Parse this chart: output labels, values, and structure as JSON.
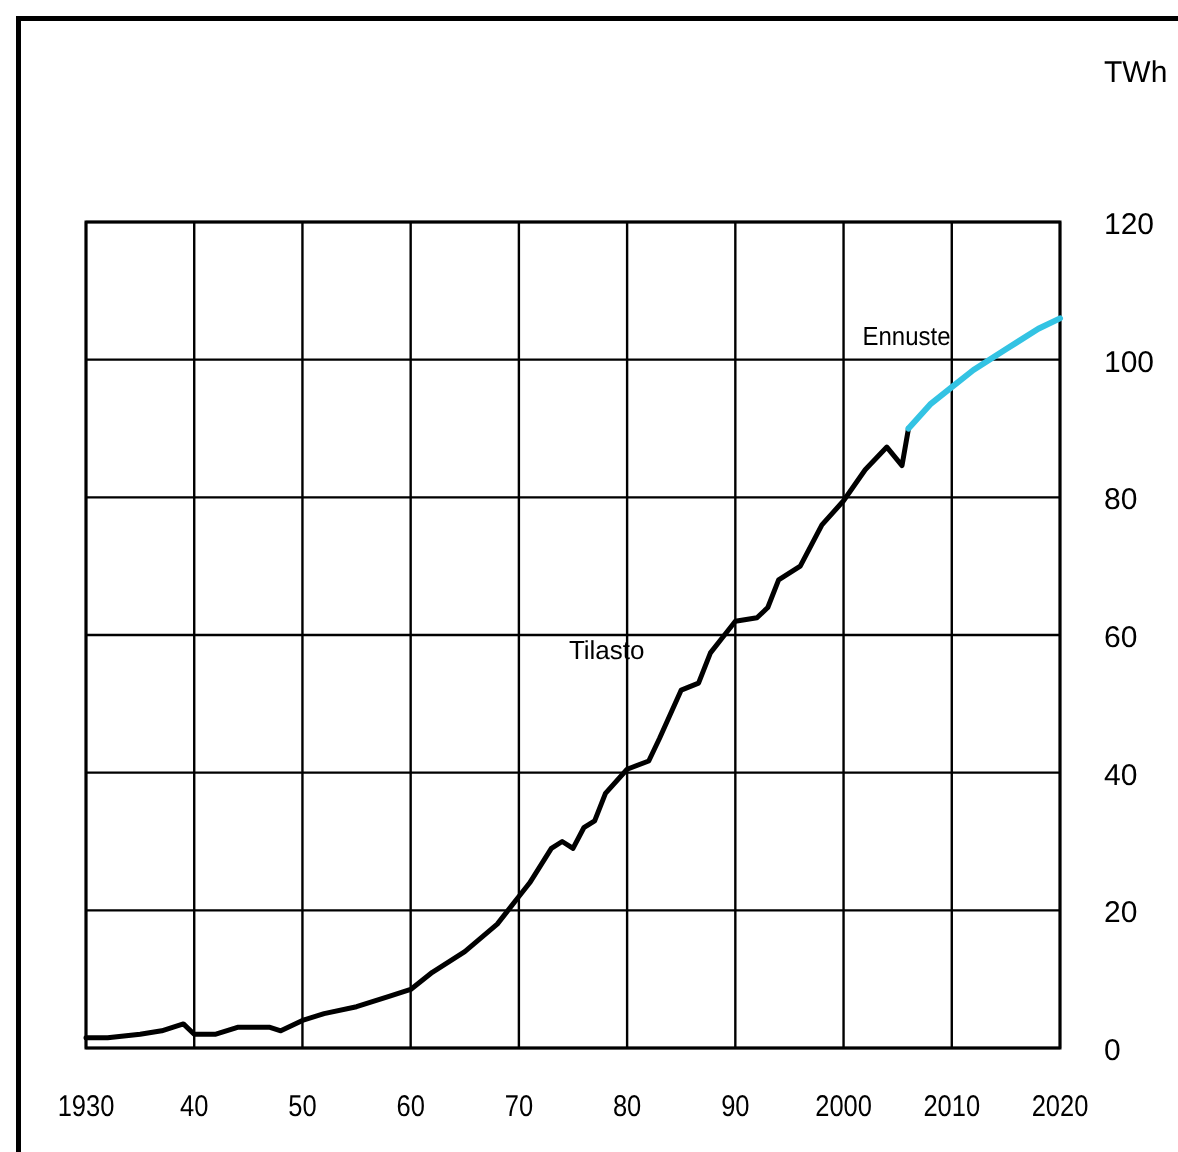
{
  "chart_data": {
    "type": "line",
    "ylabel": "TWh",
    "grid": true,
    "xlim": [
      1930,
      2020
    ],
    "ylim": [
      0,
      120
    ],
    "xticks": [
      1930,
      {
        "value": 1940,
        "label": "40"
      },
      {
        "value": 1950,
        "label": "50"
      },
      {
        "value": 1960,
        "label": "60"
      },
      {
        "value": 1970,
        "label": "70"
      },
      {
        "value": 1980,
        "label": "80"
      },
      {
        "value": 1990,
        "label": "90"
      },
      2000,
      2010,
      2020
    ],
    "yticks": [
      0,
      20,
      40,
      60,
      80,
      100,
      120
    ],
    "series": [
      {
        "name": "Tilasto",
        "color": "#000000",
        "x": [
          1930,
          1932,
          1935,
          1937,
          1939,
          1940,
          1942,
          1944,
          1947,
          1948,
          1950,
          1952,
          1955,
          1958,
          1960,
          1962,
          1965,
          1968,
          1970,
          1971,
          1973,
          1974,
          1975,
          1976,
          1977,
          1978,
          1980,
          1982,
          1983,
          1985,
          1986.6,
          1987.7,
          1989,
          1990,
          1992,
          1993,
          1994,
          1996,
          1998,
          2000,
          2002,
          2004,
          2005.4,
          2006
        ],
        "values": [
          1.5,
          1.5,
          2,
          2.5,
          3.5,
          2,
          2,
          3,
          3,
          2.5,
          4,
          5,
          6,
          7.5,
          8.5,
          11,
          14,
          18,
          22,
          24,
          29,
          30,
          29,
          32,
          33,
          37,
          40.5,
          41.7,
          45,
          52,
          53,
          57.4,
          60,
          62,
          62.5,
          64,
          68,
          70,
          76,
          79.5,
          84,
          87.3,
          84.6,
          90
        ]
      },
      {
        "name": "Ennuste",
        "color": "#33c3e3",
        "x": [
          2006,
          2008,
          2010,
          2012,
          2015,
          2018,
          2020
        ],
        "values": [
          90,
          93.5,
          96,
          98.5,
          101.5,
          104.5,
          106
        ]
      }
    ]
  }
}
